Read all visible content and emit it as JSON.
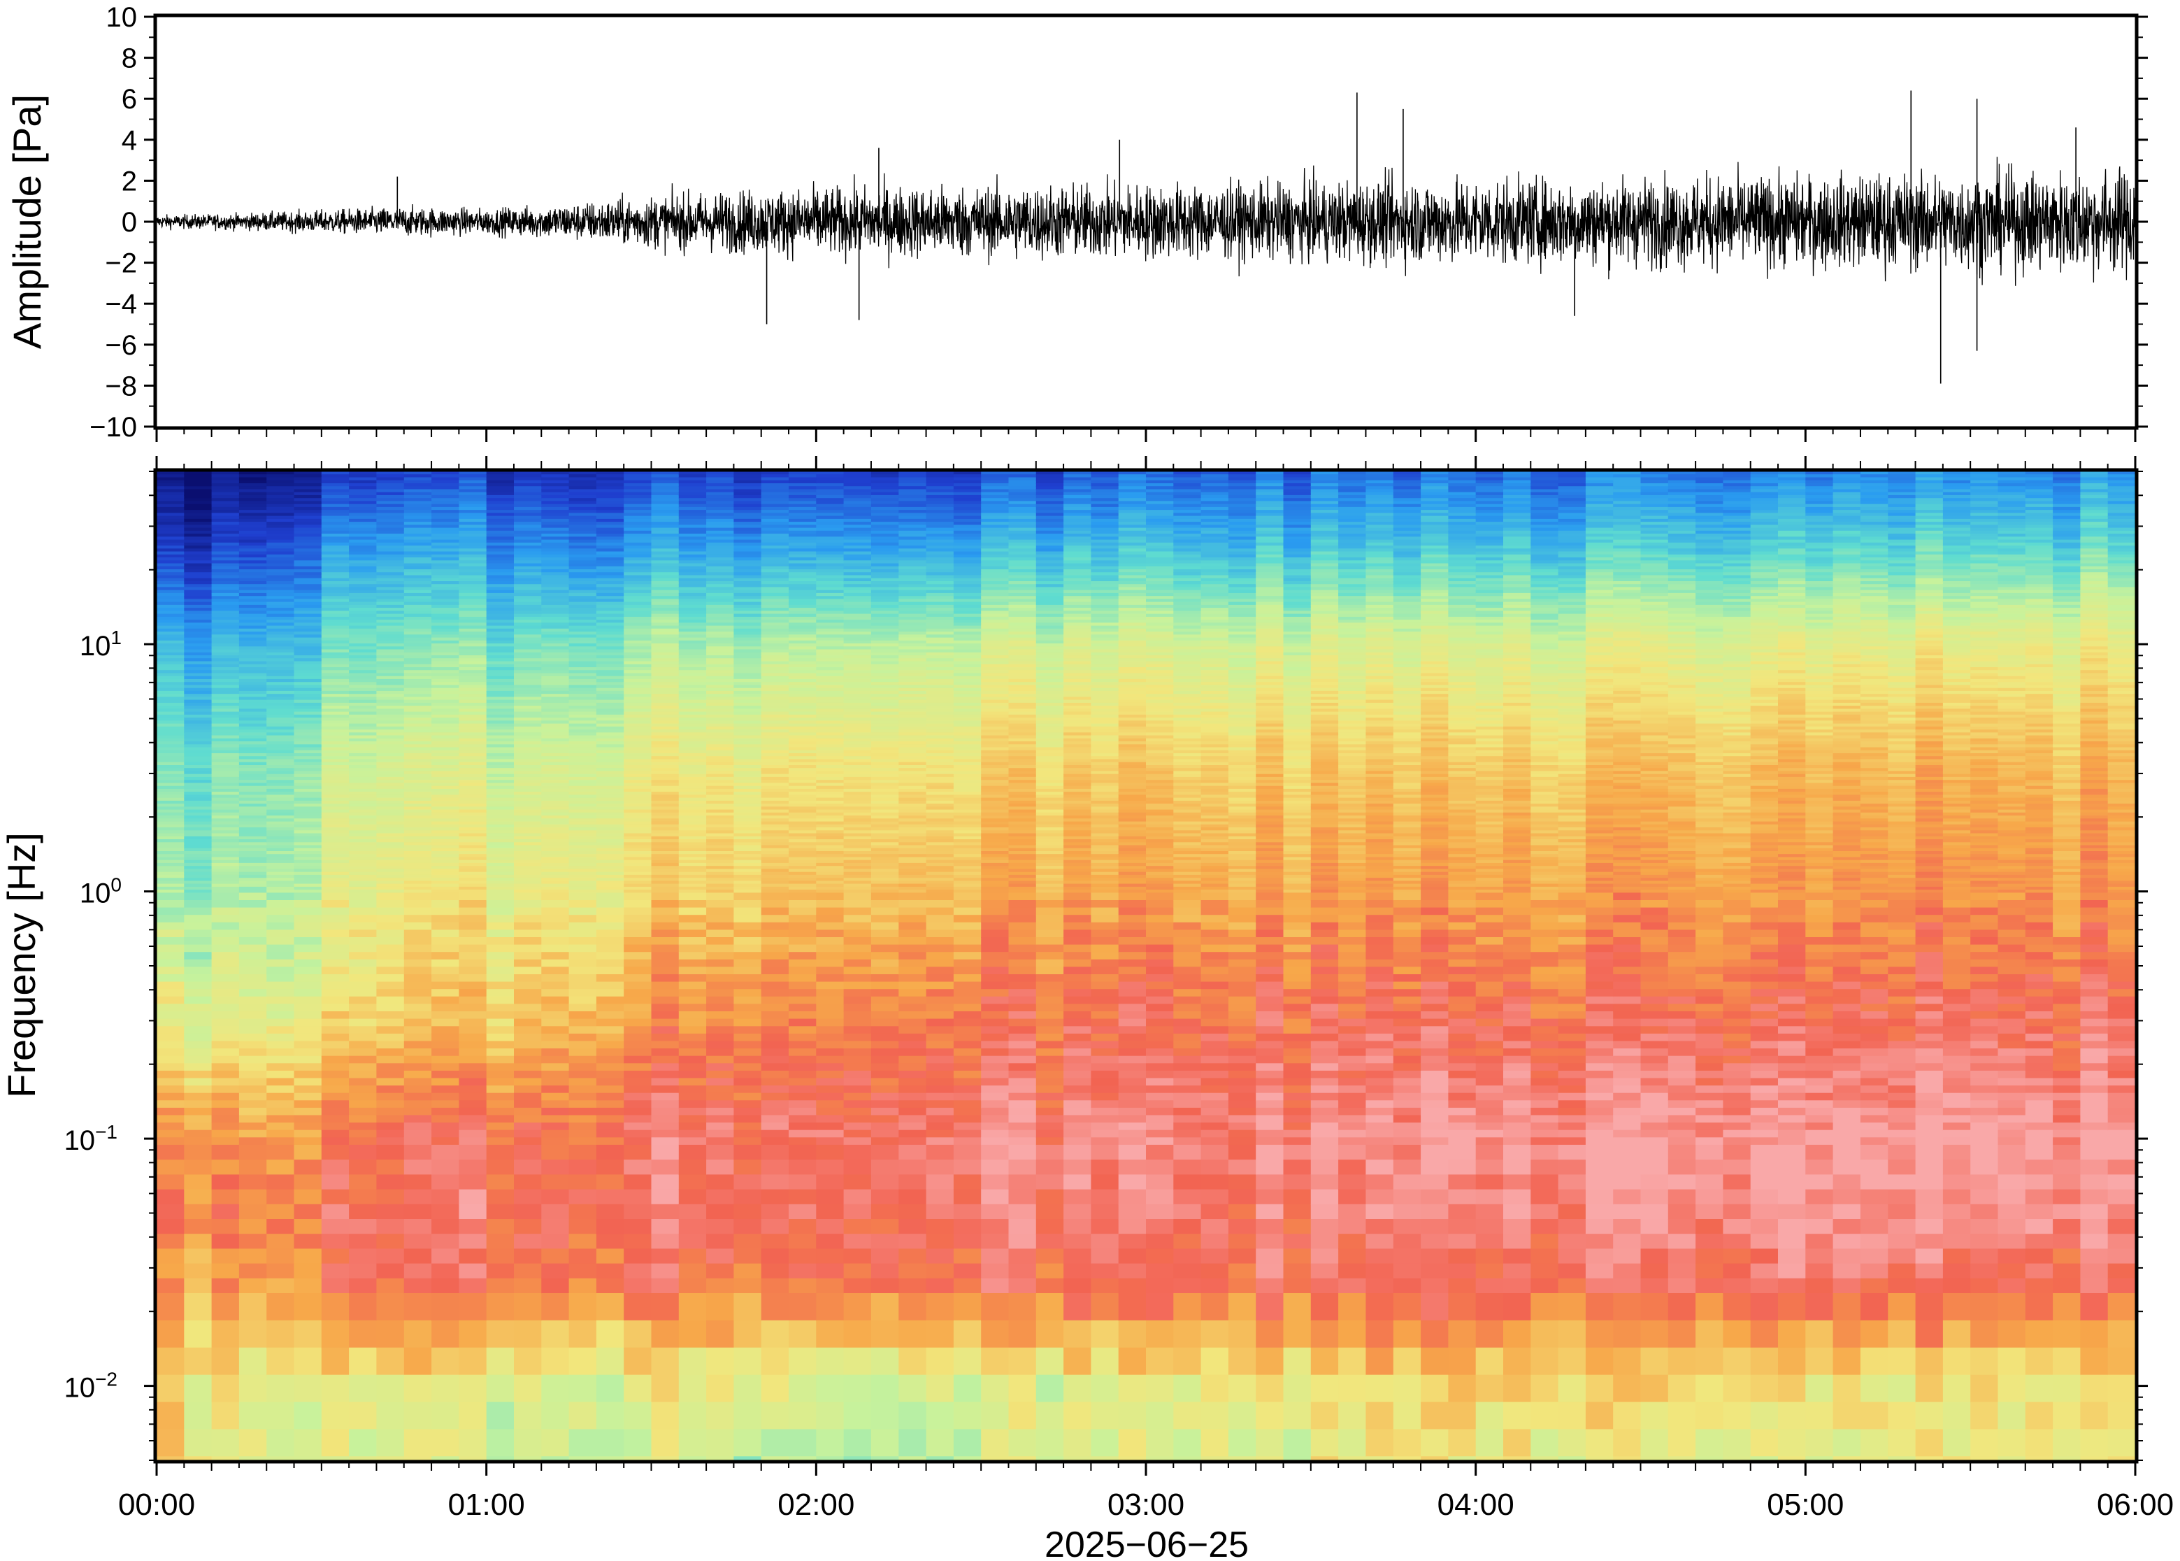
{
  "chart_data": [
    {
      "panel": "waveform",
      "type": "line",
      "ylabel": "Amplitude [Pa]",
      "ylim": [
        -10,
        10
      ],
      "yticks": [
        -10,
        -8,
        -6,
        -4,
        -2,
        0,
        2,
        4,
        6,
        8,
        10
      ],
      "ytick_labels": [
        "−10",
        "−8",
        "−6",
        "−4",
        "−2",
        "0",
        "2",
        "4",
        "6",
        "8",
        "10"
      ],
      "x_range_hours": [
        0,
        6
      ],
      "envelope": {
        "x_hours": [
          0,
          0.25,
          0.5,
          0.75,
          1.0,
          1.25,
          1.5,
          1.75,
          2.0,
          2.25,
          2.5,
          2.75,
          3.0,
          3.25,
          3.5,
          3.75,
          4.0,
          4.25,
          4.5,
          4.75,
          5.0,
          5.25,
          5.5,
          5.75,
          6.0
        ],
        "amplitude_pa": [
          0.4,
          0.5,
          0.7,
          0.9,
          0.8,
          1.1,
          1.6,
          1.9,
          2.1,
          2.2,
          2.2,
          2.3,
          2.3,
          2.3,
          2.4,
          2.6,
          2.6,
          2.6,
          2.7,
          2.8,
          2.8,
          2.9,
          3.0,
          3.1,
          3.2
        ]
      },
      "spikes": [
        {
          "x_hours": 0.73,
          "y_pa": 2.2
        },
        {
          "x_hours": 1.85,
          "y_pa": -5.0
        },
        {
          "x_hours": 2.13,
          "y_pa": -4.8
        },
        {
          "x_hours": 2.19,
          "y_pa": 3.6
        },
        {
          "x_hours": 2.92,
          "y_pa": 4.0
        },
        {
          "x_hours": 3.64,
          "y_pa": 6.3
        },
        {
          "x_hours": 3.78,
          "y_pa": 5.5
        },
        {
          "x_hours": 4.3,
          "y_pa": -4.6
        },
        {
          "x_hours": 5.32,
          "y_pa": 6.4
        },
        {
          "x_hours": 5.41,
          "y_pa": -7.9
        },
        {
          "x_hours": 5.52,
          "y_pa": 6.0
        },
        {
          "x_hours": 5.52,
          "y_pa": -6.3
        },
        {
          "x_hours": 5.82,
          "y_pa": 4.6
        }
      ]
    },
    {
      "panel": "spectrogram",
      "type": "heatmap",
      "ylabel": "Frequency [Hz]",
      "yscale": "log",
      "ylim": [
        0.005,
        50
      ],
      "yticks": [
        0.01,
        0.1,
        1,
        10
      ],
      "ytick_labels": [
        {
          "base": "10",
          "exp": "−2"
        },
        {
          "base": "10",
          "exp": "−1"
        },
        {
          "base": "10",
          "exp": "0"
        },
        {
          "base": "10",
          "exp": "1"
        }
      ],
      "xlabel": "2025−06−25",
      "xticks_hours": [
        0,
        1,
        2,
        3,
        4,
        5,
        6
      ],
      "xtick_labels": [
        "00:00",
        "01:00",
        "02:00",
        "03:00",
        "04:00",
        "05:00",
        "06:00"
      ],
      "colormap": [
        "#0a0f70",
        "#1f3fcf",
        "#2a9cf0",
        "#5fdcd0",
        "#c7f29c",
        "#f2e67c",
        "#f7a84a",
        "#f26452",
        "#f9a8a8"
      ],
      "intensity_grid": {
        "description_units": "relative level 0..8 (colormap index)",
        "x_hours": [
          0,
          0.5,
          1.0,
          1.5,
          2.0,
          2.5,
          3.0,
          3.5,
          4.0,
          4.5,
          5.0,
          5.5,
          6.0
        ],
        "log10_freq": [
          1.7,
          1.4,
          1.0,
          0.5,
          0.0,
          -0.5,
          -1.0,
          -1.3,
          -1.6,
          -2.0,
          -2.3
        ],
        "levels": [
          [
            0.0,
            0.6,
            0.9,
            1.0,
            1.0,
            1.0,
            1.2,
            1.4,
            1.5,
            1.6,
            1.7,
            1.8,
            1.9
          ],
          [
            0.6,
            1.8,
            2.0,
            2.1,
            2.2,
            2.2,
            2.4,
            2.5,
            2.6,
            2.7,
            2.8,
            2.9,
            3.0
          ],
          [
            2.2,
            3.0,
            3.3,
            3.7,
            4.0,
            4.1,
            4.2,
            4.3,
            4.4,
            4.5,
            4.6,
            4.7,
            4.8
          ],
          [
            3.1,
            4.0,
            4.3,
            4.8,
            5.1,
            5.2,
            5.3,
            5.4,
            5.5,
            5.6,
            5.7,
            5.8,
            5.8
          ],
          [
            3.5,
            4.4,
            4.8,
            5.3,
            5.7,
            5.8,
            5.9,
            6.0,
            6.1,
            6.2,
            6.2,
            6.3,
            6.3
          ],
          [
            4.6,
            5.0,
            5.5,
            6.3,
            6.6,
            6.7,
            6.8,
            6.9,
            7.0,
            7.0,
            7.0,
            7.1,
            7.1
          ],
          [
            6.2,
            6.6,
            7.0,
            7.3,
            7.4,
            7.4,
            7.4,
            7.6,
            7.8,
            7.9,
            7.9,
            8.0,
            7.9
          ],
          [
            6.5,
            7.0,
            7.2,
            7.3,
            7.3,
            7.3,
            7.2,
            7.4,
            7.5,
            7.7,
            7.7,
            7.8,
            7.8
          ],
          [
            6.0,
            6.7,
            6.8,
            6.8,
            6.7,
            6.9,
            6.9,
            7.0,
            7.2,
            7.1,
            7.2,
            7.0,
            7.0
          ],
          [
            5.2,
            4.7,
            4.8,
            4.7,
            4.5,
            4.5,
            4.5,
            4.9,
            5.4,
            5.2,
            4.9,
            5.0,
            5.0
          ],
          [
            5.4,
            4.2,
            4.2,
            4.3,
            3.9,
            4.2,
            4.4,
            4.6,
            4.9,
            4.6,
            4.4,
            4.8,
            5.0
          ]
        ]
      }
    }
  ]
}
